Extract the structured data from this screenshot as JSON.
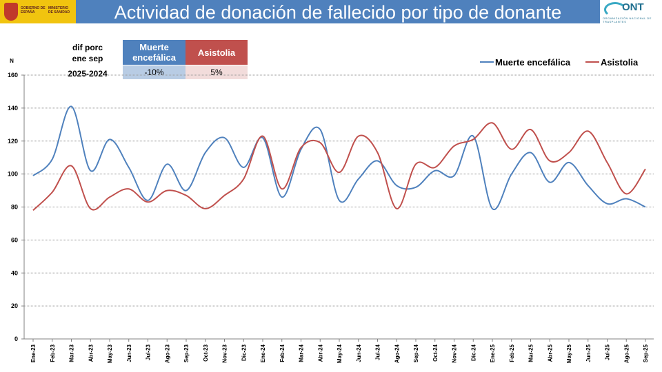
{
  "header": {
    "title": "Actividad de donación de fallecido por tipo de donante",
    "gov_logo_line1": "GOBIERNO DE ESPAÑA",
    "gov_logo_line2": "MINISTERIO DE SANIDAD",
    "ont_logo_name": "ONT",
    "ont_logo_sub": "ORGANIZACIÓN NACIONAL DE TRASPLANTES"
  },
  "summary_table": {
    "label_line1": "dif porc",
    "label_line2": "ene sep",
    "label_line3": "2025-2024",
    "columns": [
      {
        "header": "Muerte encefálica",
        "value": "-10%",
        "header_color": "#4f81bd",
        "cell_color": "#b8cce4"
      },
      {
        "header": "Asistolia",
        "value": "5%",
        "header_color": "#c0504d",
        "cell_color": "#f2dcdb"
      }
    ]
  },
  "chart_data": {
    "type": "line",
    "ylabel": "N",
    "ylim": [
      0,
      160
    ],
    "yticks": [
      0,
      20,
      40,
      60,
      80,
      100,
      120,
      140,
      160
    ],
    "grid": true,
    "legend_position": "top-right",
    "categories": [
      "Ene-23",
      "Feb-23",
      "Mar-23",
      "Abr-23",
      "May-23",
      "Jun-23",
      "Jul-23",
      "Ago-23",
      "Sep-23",
      "Oct-23",
      "Nov-23",
      "Dic-23",
      "Ene-24",
      "Feb-24",
      "Mar-24",
      "Abr-24",
      "May-24",
      "Jun-24",
      "Jul-24",
      "Ago-24",
      "Sep-24",
      "Oct-24",
      "Nov-24",
      "Dic-24",
      "Ene-25",
      "Feb-25",
      "Mar-25",
      "Abr-25",
      "May-25",
      "Jun-25",
      "Jul-25",
      "Ago-25",
      "Sep-25"
    ],
    "series": [
      {
        "name": "Muerte encefálica",
        "color": "#4f81bd",
        "values": [
          99,
          109,
          141,
          102,
          121,
          104,
          84,
          106,
          90,
          113,
          122,
          104,
          122,
          86,
          115,
          127,
          84,
          97,
          108,
          93,
          92,
          102,
          99,
          123,
          79,
          100,
          113,
          95,
          107,
          93,
          82,
          85,
          80
        ]
      },
      {
        "name": "Asistolia",
        "color": "#c0504d",
        "values": [
          78,
          89,
          105,
          79,
          86,
          91,
          83,
          90,
          87,
          79,
          87,
          97,
          123,
          91,
          116,
          119,
          101,
          123,
          113,
          79,
          106,
          104,
          117,
          121,
          131,
          115,
          127,
          108,
          113,
          126,
          107,
          88,
          103
        ]
      }
    ]
  }
}
